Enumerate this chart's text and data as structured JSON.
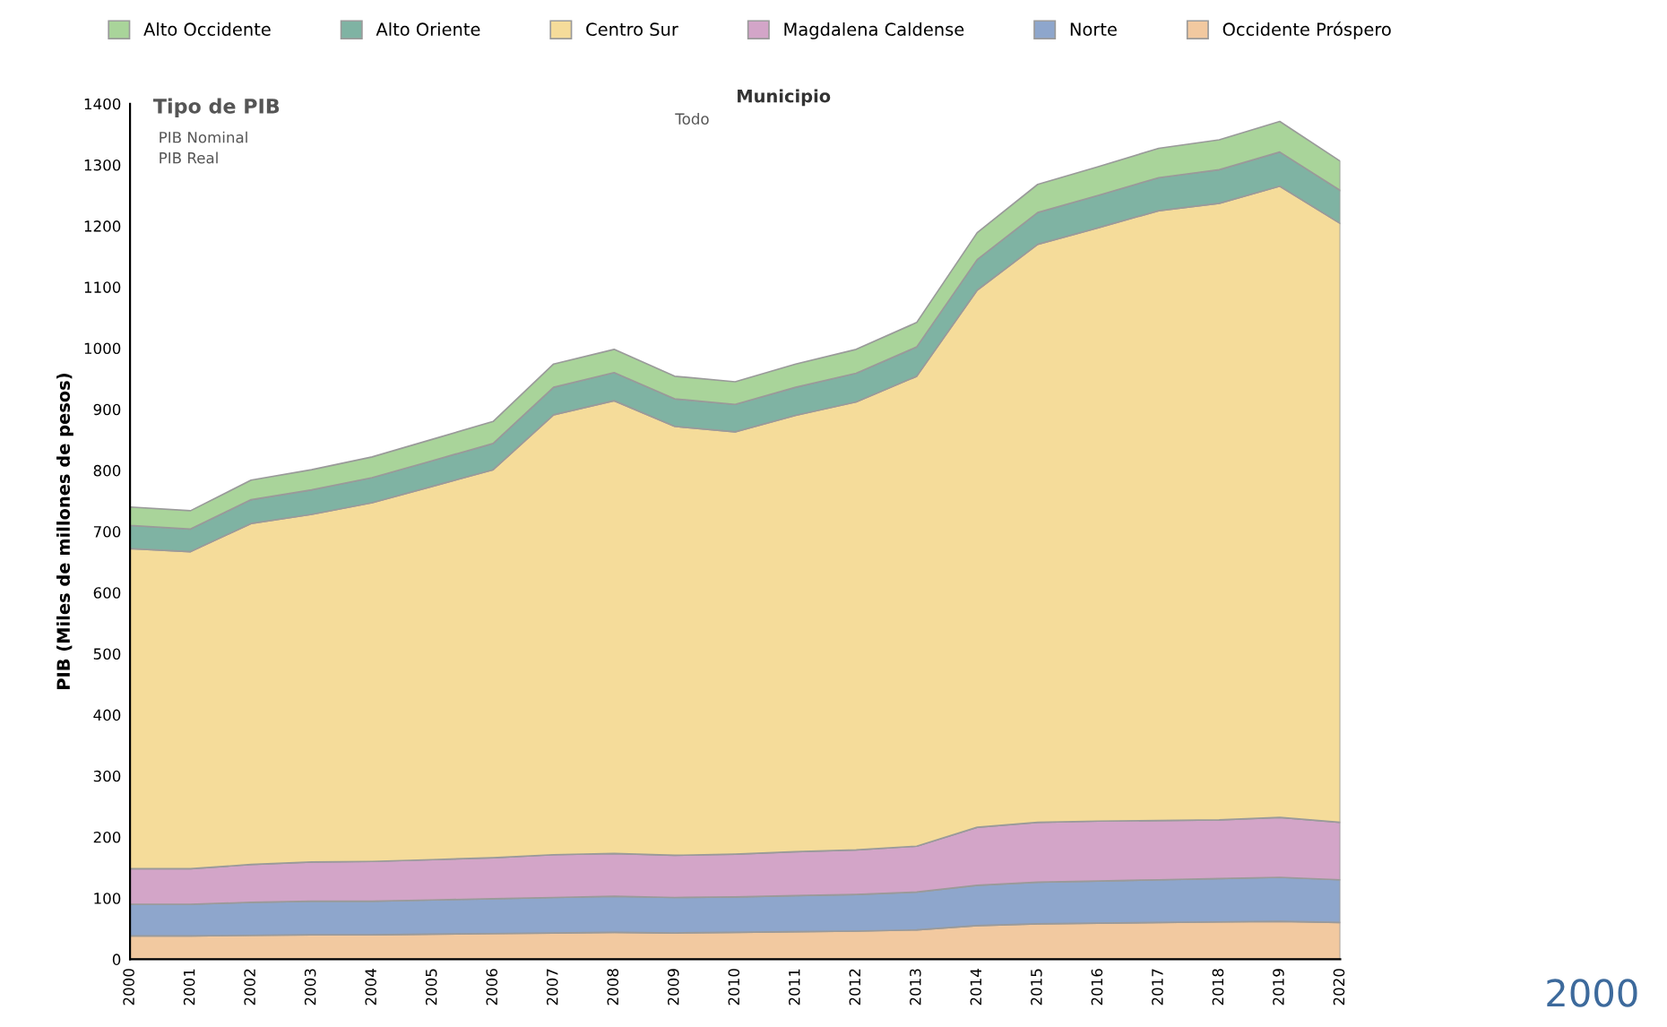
{
  "chart_data": {
    "type": "area",
    "stacked": true,
    "ylabel": "PIB (Miles de millones de pesos)",
    "categories": [
      "2000",
      "2001",
      "2002",
      "2003",
      "2004",
      "2005",
      "2006",
      "2007",
      "2008",
      "2009",
      "2010",
      "2011",
      "2012",
      "2013",
      "2014",
      "2015",
      "2016",
      "2017",
      "2018",
      "2019",
      "2020"
    ],
    "series": [
      {
        "name": "Occidente Próspero",
        "color": "#f2c9a0",
        "values": [
          38,
          38,
          39,
          40,
          40,
          41,
          42,
          43,
          44,
          43,
          44,
          45,
          46,
          48,
          55,
          58,
          59,
          60,
          61,
          62,
          60
        ]
      },
      {
        "name": "Norte",
        "color": "#8ea6cc",
        "values": [
          52,
          52,
          54,
          55,
          55,
          56,
          57,
          58,
          59,
          58,
          58,
          59,
          60,
          62,
          66,
          68,
          69,
          70,
          71,
          72,
          70
        ]
      },
      {
        "name": "Magdalena Caldense",
        "color": "#d3a5c8",
        "values": [
          58,
          58,
          62,
          64,
          65,
          66,
          67,
          70,
          70,
          69,
          70,
          72,
          73,
          75,
          95,
          98,
          98,
          97,
          96,
          98,
          94
        ]
      },
      {
        "name": "Centro Sur",
        "color": "#f5dc9a",
        "values": [
          524,
          519,
          558,
          569,
          587,
          611,
          635,
          720,
          741,
          702,
          691,
          714,
          733,
          769,
          879,
          946,
          971,
          998,
          1009,
          1033,
          980
        ]
      },
      {
        "name": "Alto Oriente",
        "color": "#7fb3a3",
        "values": [
          38,
          37,
          39,
          40,
          41,
          42,
          43,
          45,
          46,
          45,
          45,
          46,
          47,
          48,
          50,
          52,
          53,
          54,
          55,
          56,
          54
        ]
      },
      {
        "name": "Alto Occidente",
        "color": "#a9d49a",
        "values": [
          30,
          30,
          32,
          33,
          34,
          35,
          36,
          38,
          38,
          37,
          37,
          38,
          39,
          40,
          44,
          46,
          47,
          48,
          49,
          50,
          48
        ]
      }
    ],
    "ylim": [
      0,
      1400
    ],
    "yticks": [
      0,
      100,
      200,
      300,
      400,
      500,
      600,
      700,
      800,
      900,
      1000,
      1100,
      1200,
      1300,
      1400
    ],
    "grid": false,
    "legend": "top",
    "annotations": [
      "Tipo de PIB",
      "PIB Nominal",
      "PIB Real",
      "Municipio",
      "Todo",
      "2000"
    ]
  }
}
